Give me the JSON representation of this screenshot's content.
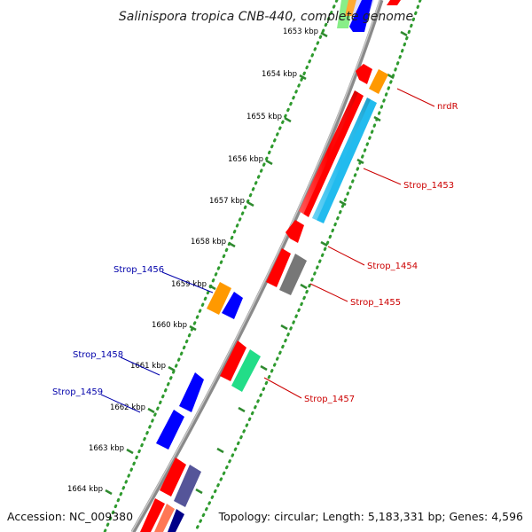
{
  "title": "Salinispora tropica CNB-440, complete genome",
  "footer": {
    "accession": "Accession: NC_009380",
    "summary": "Topology: circular; Length: 5,183,331 bp; Genes: 4,596"
  },
  "ticks": [
    {
      "label": "1653 kbp"
    },
    {
      "label": "1654 kbp"
    },
    {
      "label": "1655 kbp"
    },
    {
      "label": "1656 kbp"
    },
    {
      "label": "1657 kbp"
    },
    {
      "label": "1658 kbp"
    },
    {
      "label": "1659 kbp"
    },
    {
      "label": "1660 kbp"
    },
    {
      "label": "1661 kbp"
    },
    {
      "label": "1662 kbp"
    },
    {
      "label": "1663 kbp"
    },
    {
      "label": "1664 kbp"
    }
  ],
  "gene_labels": {
    "nrdR": "nrdR",
    "strop_1453": "Strop_1453",
    "strop_1454": "Strop_1454",
    "strop_1455": "Strop_1455",
    "strop_1456": "Strop_1456",
    "strop_1457": "Strop_1457",
    "strop_1458": "Strop_1458",
    "strop_1459": "Strop_1459"
  },
  "colors": {
    "backbone": "#8a8a8a",
    "tick_dots": "#2e9a2e",
    "tick_major": "#2e8a2e",
    "forward_label": "#cc0000",
    "reverse_label": "#0000aa",
    "red_gene": "#ff0000",
    "orange_gene": "#ff9900",
    "cyan_gene": "#22bbee",
    "blue_gene": "#0000ff",
    "gray_gene": "#777777",
    "green_gene": "#22dd88",
    "purple_gene": "#555599"
  }
}
